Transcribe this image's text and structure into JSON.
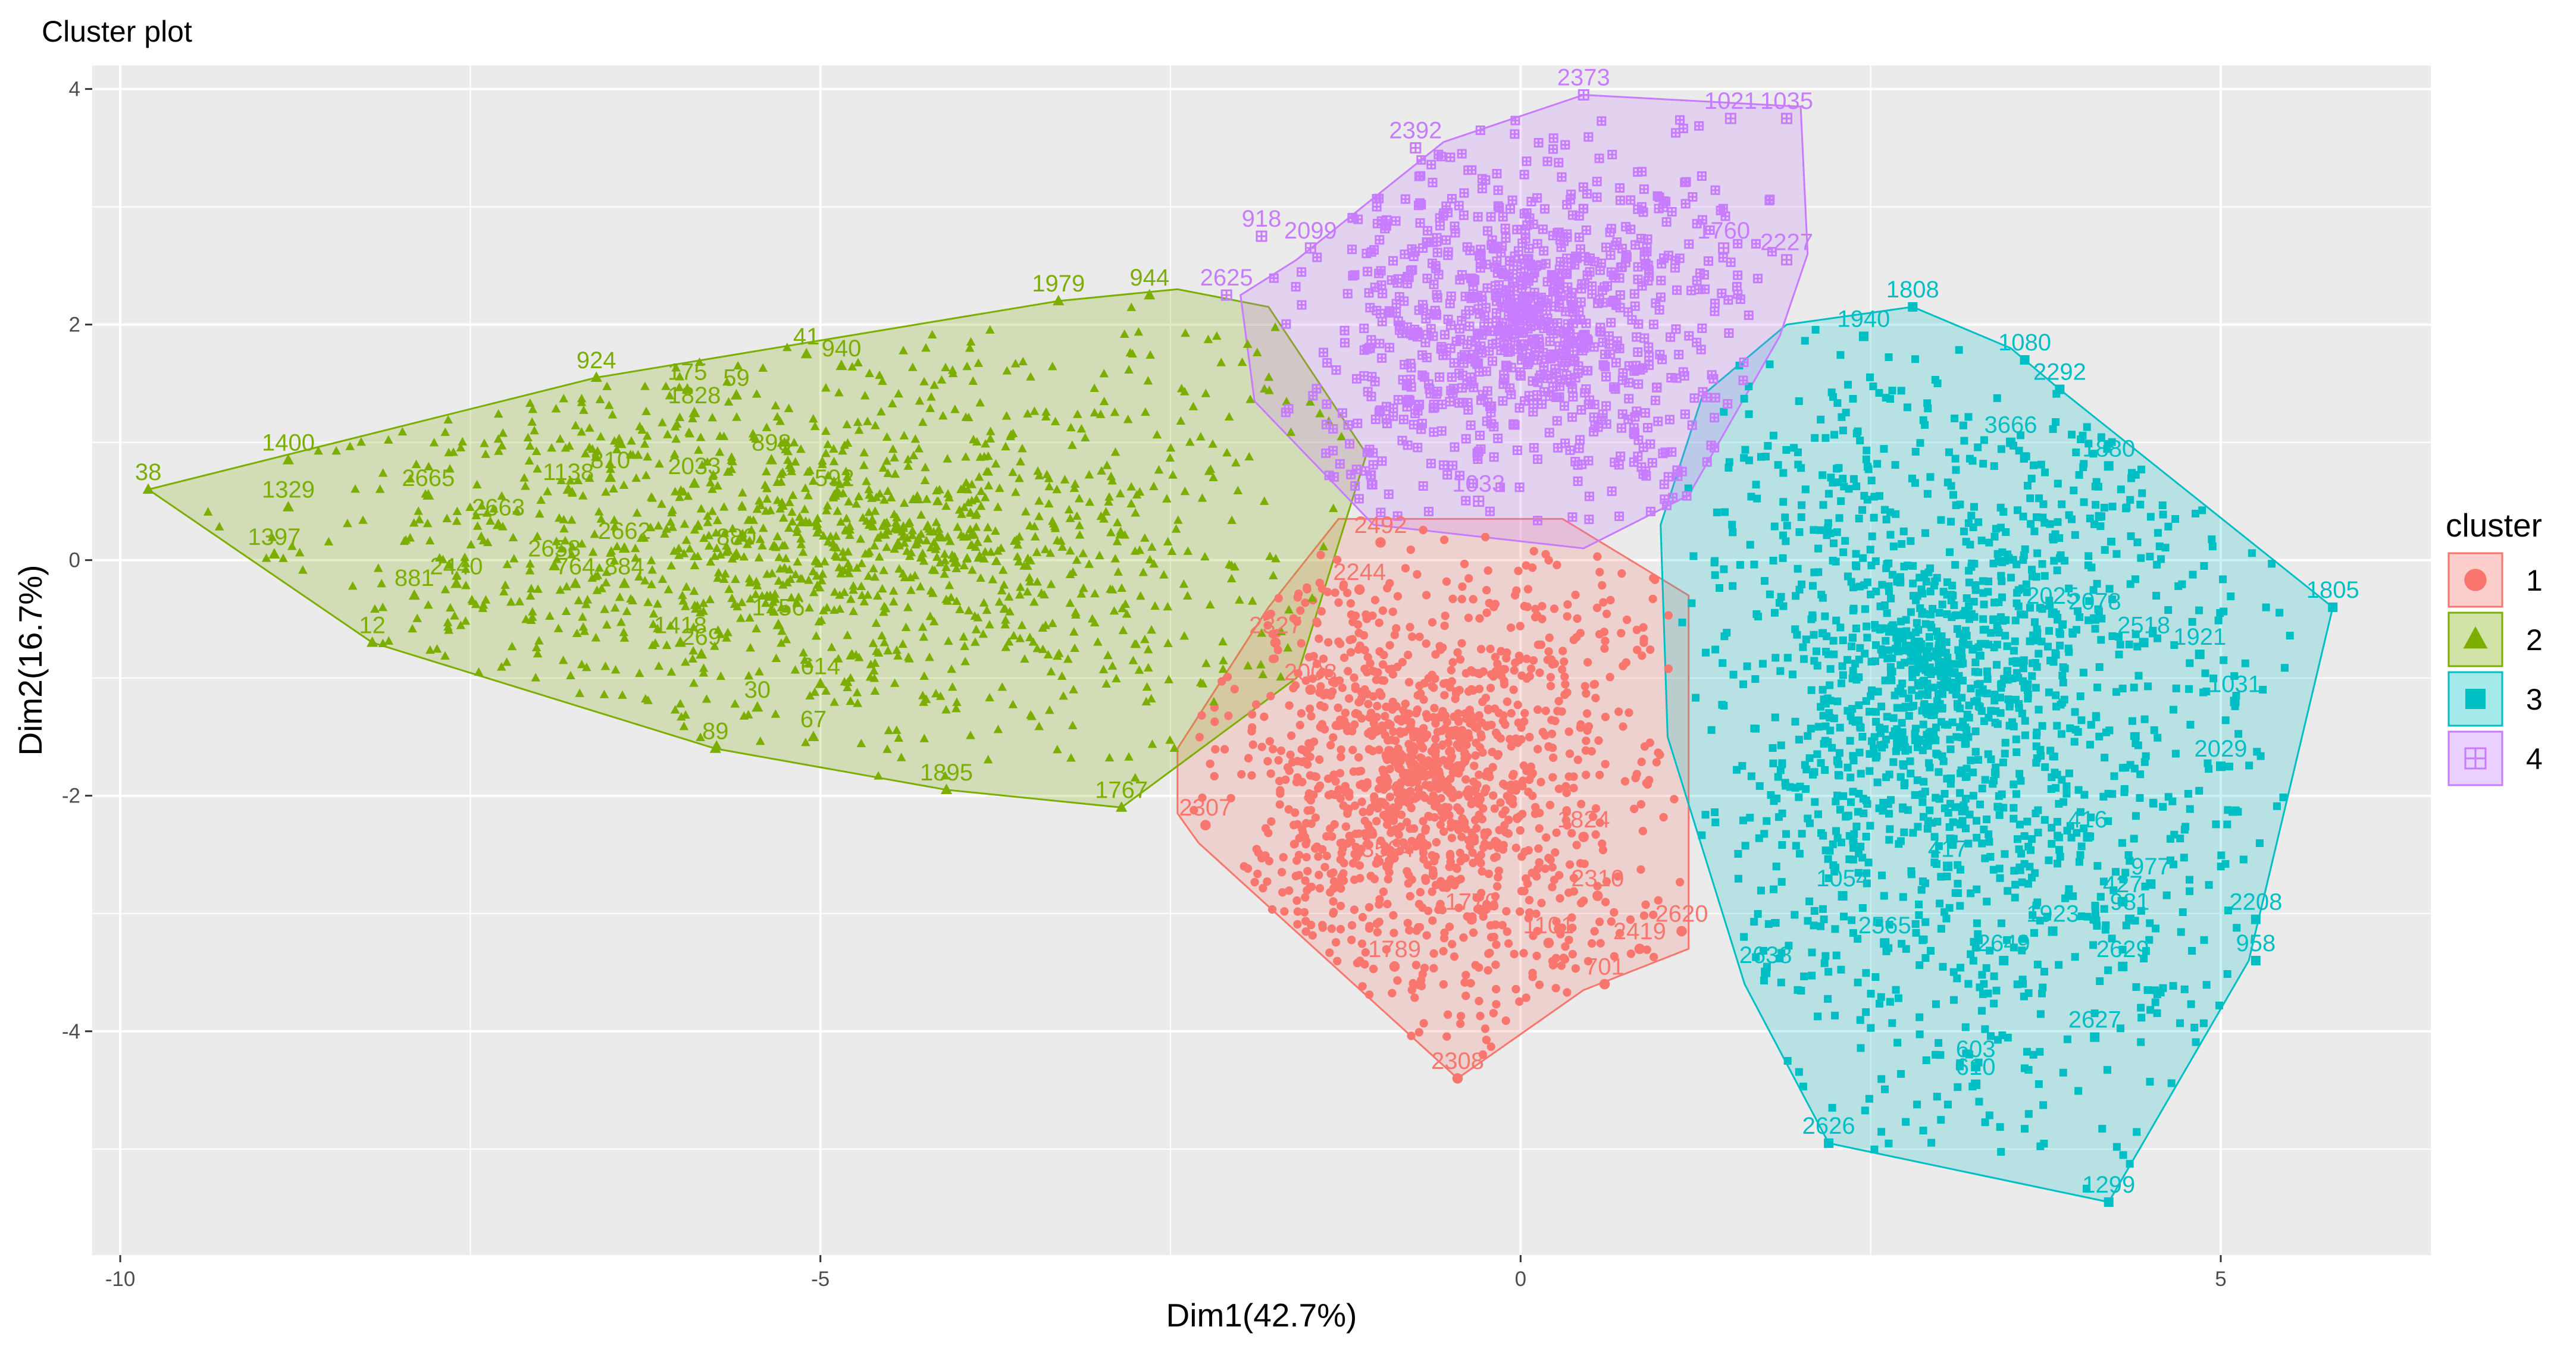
{
  "chart_data": {
    "type": "scatter",
    "title": "Cluster plot",
    "xlabel": "Dim1(42.7%)",
    "ylabel": "Dim2(16.7%)",
    "xlim": [
      -10.2,
      6.5
    ],
    "ylim": [
      -5.9,
      4.2
    ],
    "x_ticks": [
      -10,
      -5,
      0,
      5
    ],
    "y_ticks": [
      -4,
      -2,
      0,
      2,
      4
    ],
    "x_tick_labels": [
      "-10",
      "-5",
      "0",
      "5"
    ],
    "y_tick_labels": [
      "-4",
      "-2",
      "0",
      "2",
      "4"
    ],
    "grid": true,
    "legend": {
      "title": "cluster",
      "position": "right",
      "entries": [
        "1",
        "2",
        "3",
        "4"
      ]
    },
    "colors": {
      "1": "#F8766D",
      "2": "#7CAE00",
      "3": "#00BFC4",
      "4": "#C77CFF"
    },
    "panel_background": "#EBEBEB",
    "series": [
      {
        "name": "1",
        "marker": "circle",
        "hull": [
          [
            -2.45,
            -2.15
          ],
          [
            -2.45,
            -1.6
          ],
          [
            -1.8,
            -0.4
          ],
          [
            -1.3,
            0.35
          ],
          [
            0.3,
            0.35
          ],
          [
            1.2,
            -0.3
          ],
          [
            1.2,
            -3.3
          ],
          [
            0.45,
            -3.65
          ],
          [
            -0.45,
            -4.4
          ],
          [
            -2.3,
            -2.4
          ]
        ],
        "labeled_points": [
          {
            "x": -0.45,
            "y": -4.4,
            "label": "2308"
          },
          {
            "x": -0.9,
            "y": -3.45,
            "label": "1789"
          },
          {
            "x": 0.6,
            "y": -3.6,
            "label": "701"
          },
          {
            "x": 0.85,
            "y": -3.3,
            "label": "2419"
          },
          {
            "x": -0.35,
            "y": -3.05,
            "label": "1770"
          },
          {
            "x": 0.2,
            "y": -3.25,
            "label": "1101"
          },
          {
            "x": 1.15,
            "y": -3.15,
            "label": "2620"
          },
          {
            "x": -2.25,
            "y": -2.25,
            "label": "2307"
          },
          {
            "x": -0.95,
            "y": -2.6,
            "label": "3504"
          },
          {
            "x": 0.45,
            "y": -2.35,
            "label": "1824"
          },
          {
            "x": 0.55,
            "y": -2.85,
            "label": "2310"
          },
          {
            "x": -1.0,
            "y": 0.15,
            "label": "2492"
          },
          {
            "x": -1.15,
            "y": -0.25,
            "label": "2244"
          },
          {
            "x": -1.75,
            "y": -0.7,
            "label": "2327"
          },
          {
            "x": -1.5,
            "y": -1.1,
            "label": "2008"
          }
        ]
      },
      {
        "name": "2",
        "marker": "triangle",
        "hull": [
          [
            -9.8,
            0.6
          ],
          [
            -8.2,
            -0.7
          ],
          [
            -5.75,
            -1.6
          ],
          [
            -4.1,
            -1.95
          ],
          [
            -2.85,
            -2.1
          ],
          [
            -1.6,
            -1.0
          ],
          [
            -1.1,
            0.9
          ],
          [
            -1.8,
            2.15
          ],
          [
            -2.45,
            2.3
          ],
          [
            -3.3,
            2.2
          ],
          [
            -6.6,
            1.55
          ]
        ],
        "labeled_points": [
          {
            "x": -9.8,
            "y": 0.6,
            "label": "38"
          },
          {
            "x": -8.8,
            "y": 0.85,
            "label": "1400"
          },
          {
            "x": -8.8,
            "y": 0.45,
            "label": "1329"
          },
          {
            "x": -8.9,
            "y": 0.05,
            "label": "1397"
          },
          {
            "x": -8.2,
            "y": -0.7,
            "label": "12"
          },
          {
            "x": -7.9,
            "y": -0.3,
            "label": "881"
          },
          {
            "x": -7.8,
            "y": 0.55,
            "label": "2665"
          },
          {
            "x": -7.3,
            "y": 0.3,
            "label": "2663"
          },
          {
            "x": -6.9,
            "y": -0.05,
            "label": "2658"
          },
          {
            "x": -7.6,
            "y": -0.2,
            "label": "2440"
          },
          {
            "x": -6.6,
            "y": 1.55,
            "label": "924"
          },
          {
            "x": -6.8,
            "y": 0.6,
            "label": "1138"
          },
          {
            "x": -6.5,
            "y": 0.7,
            "label": "810"
          },
          {
            "x": -6.4,
            "y": 0.1,
            "label": "2662"
          },
          {
            "x": -6.75,
            "y": -0.2,
            "label": "764"
          },
          {
            "x": -6.4,
            "y": -0.2,
            "label": "884"
          },
          {
            "x": -5.9,
            "y": 0.65,
            "label": "2033"
          },
          {
            "x": -5.9,
            "y": 1.25,
            "label": "1828"
          },
          {
            "x": -5.95,
            "y": 1.45,
            "label": "175"
          },
          {
            "x": -5.6,
            "y": 1.4,
            "label": "59"
          },
          {
            "x": -5.1,
            "y": 1.75,
            "label": "41"
          },
          {
            "x": -4.85,
            "y": 1.65,
            "label": "940"
          },
          {
            "x": -6.0,
            "y": -0.7,
            "label": "1418"
          },
          {
            "x": -5.85,
            "y": -0.8,
            "label": "269"
          },
          {
            "x": -5.45,
            "y": -1.25,
            "label": "30"
          },
          {
            "x": -5.75,
            "y": -1.6,
            "label": "89"
          },
          {
            "x": -5.05,
            "y": -1.5,
            "label": "67"
          },
          {
            "x": -5.0,
            "y": -1.05,
            "label": "614"
          },
          {
            "x": -5.3,
            "y": -0.55,
            "label": "1756"
          },
          {
            "x": -4.1,
            "y": -1.95,
            "label": "1895"
          },
          {
            "x": -3.3,
            "y": 2.2,
            "label": "1979"
          },
          {
            "x": -2.85,
            "y": -2.1,
            "label": "1767"
          },
          {
            "x": -2.65,
            "y": 2.25,
            "label": "944"
          },
          {
            "x": -5.35,
            "y": 0.85,
            "label": "898"
          },
          {
            "x": -5.6,
            "y": 0.05,
            "label": "880"
          },
          {
            "x": -4.9,
            "y": 0.55,
            "label": "592"
          }
        ]
      },
      {
        "name": "3",
        "marker": "square",
        "hull": [
          [
            5.8,
            -0.4
          ],
          [
            5.2,
            -3.4
          ],
          [
            4.2,
            -5.45
          ],
          [
            2.2,
            -4.95
          ],
          [
            1.6,
            -3.6
          ],
          [
            1.05,
            -1.5
          ],
          [
            1.0,
            0.3
          ],
          [
            1.3,
            1.4
          ],
          [
            1.9,
            2.0
          ],
          [
            2.8,
            2.15
          ],
          [
            3.5,
            1.8
          ],
          [
            3.85,
            1.45
          ]
        ],
        "labeled_points": [
          {
            "x": 5.8,
            "y": -0.4,
            "label": "1805"
          },
          {
            "x": 2.8,
            "y": 2.15,
            "label": "1808"
          },
          {
            "x": 3.6,
            "y": 1.7,
            "label": "1080"
          },
          {
            "x": 3.85,
            "y": 1.45,
            "label": "2292"
          },
          {
            "x": 4.2,
            "y": -5.45,
            "label": "1299"
          },
          {
            "x": 2.2,
            "y": -4.95,
            "label": "2626"
          },
          {
            "x": 3.25,
            "y": -4.3,
            "label": "603"
          },
          {
            "x": 3.25,
            "y": -4.45,
            "label": "610"
          },
          {
            "x": 4.1,
            "y": -4.05,
            "label": "2627"
          },
          {
            "x": 5.25,
            "y": -3.4,
            "label": "958"
          },
          {
            "x": 5.25,
            "y": -3.05,
            "label": "2208"
          },
          {
            "x": 4.3,
            "y": -3.45,
            "label": "2629"
          },
          {
            "x": 3.45,
            "y": -3.4,
            "label": "2649"
          },
          {
            "x": 3.8,
            "y": -3.15,
            "label": "1923"
          },
          {
            "x": 4.35,
            "y": -3.05,
            "label": "981"
          },
          {
            "x": 4.5,
            "y": -2.75,
            "label": "977"
          },
          {
            "x": 4.3,
            "y": -2.9,
            "label": "427"
          },
          {
            "x": 4.05,
            "y": -2.35,
            "label": "416"
          },
          {
            "x": 3.05,
            "y": -2.6,
            "label": "417"
          },
          {
            "x": 2.6,
            "y": -3.25,
            "label": "2565"
          },
          {
            "x": 2.3,
            "y": -2.85,
            "label": "1054"
          },
          {
            "x": 1.75,
            "y": -3.5,
            "label": "2638"
          },
          {
            "x": 5.1,
            "y": -1.2,
            "label": "1031"
          },
          {
            "x": 5.0,
            "y": -1.75,
            "label": "2029"
          },
          {
            "x": 4.45,
            "y": -0.7,
            "label": "2518"
          },
          {
            "x": 4.85,
            "y": -0.8,
            "label": "1921"
          },
          {
            "x": 4.1,
            "y": -0.5,
            "label": "2078"
          },
          {
            "x": 3.8,
            "y": -0.45,
            "label": "2025"
          },
          {
            "x": 4.2,
            "y": 0.8,
            "label": "1880"
          },
          {
            "x": 3.5,
            "y": 1.0,
            "label": "3666"
          },
          {
            "x": 2.45,
            "y": 1.9,
            "label": "1940"
          }
        ]
      },
      {
        "name": "4",
        "marker": "boxplus",
        "hull": [
          [
            -2.0,
            2.25
          ],
          [
            -1.6,
            2.55
          ],
          [
            -0.55,
            3.55
          ],
          [
            0.45,
            3.95
          ],
          [
            2.0,
            3.85
          ],
          [
            2.05,
            2.6
          ],
          [
            1.85,
            1.9
          ],
          [
            1.2,
            0.55
          ],
          [
            0.45,
            0.1
          ],
          [
            -1.05,
            0.3
          ],
          [
            -1.9,
            1.35
          ]
        ],
        "labeled_points": [
          {
            "x": 0.45,
            "y": 3.95,
            "label": "2373"
          },
          {
            "x": 1.9,
            "y": 3.75,
            "label": "1035"
          },
          {
            "x": -0.75,
            "y": 3.5,
            "label": "2392"
          },
          {
            "x": -1.85,
            "y": 2.75,
            "label": "918"
          },
          {
            "x": 1.9,
            "y": 2.55,
            "label": "2227"
          },
          {
            "x": 1.5,
            "y": 3.75,
            "label": "1021"
          },
          {
            "x": -1.5,
            "y": 2.65,
            "label": "2099"
          },
          {
            "x": -2.1,
            "y": 2.25,
            "label": "2625"
          },
          {
            "x": -0.3,
            "y": 0.5,
            "label": "1033"
          },
          {
            "x": 1.45,
            "y": 2.65,
            "label": "1760"
          }
        ]
      }
    ]
  }
}
